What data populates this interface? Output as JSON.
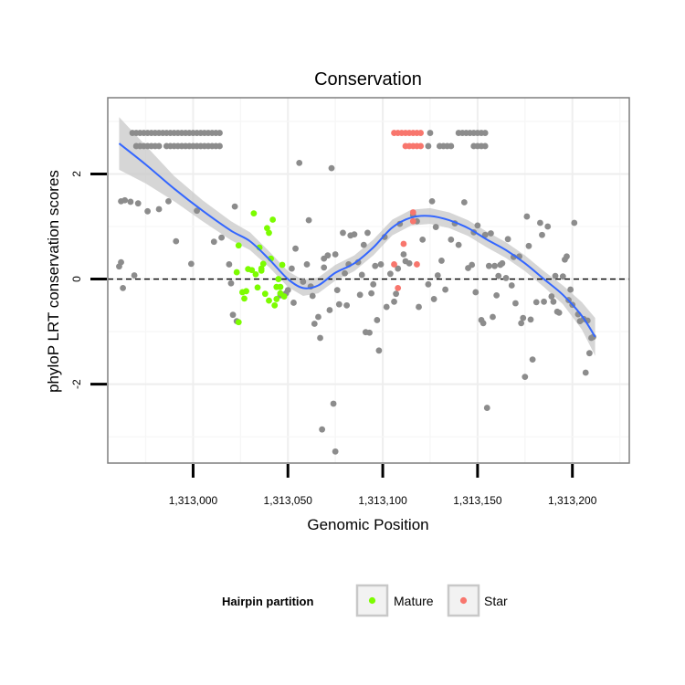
{
  "chart_data": {
    "type": "scatter",
    "title": "Conservation",
    "xlabel": "Genomic Position",
    "ylabel": "phyloP LRT conservation scores",
    "xlim": [
      1312955,
      1313230
    ],
    "ylim": [
      -3.5,
      3.45
    ],
    "x_ticks": [
      {
        "value": 1313000,
        "label": "1,313,000"
      },
      {
        "value": 1313050,
        "label": "1,313,050"
      },
      {
        "value": 1313100,
        "label": "1,313,100"
      },
      {
        "value": 1313150,
        "label": "1,313,150"
      },
      {
        "value": 1313200,
        "label": "1,313,200"
      }
    ],
    "y_ticks": [
      {
        "value": -2,
        "label": "-2"
      },
      {
        "value": 0,
        "label": "0"
      },
      {
        "value": 2,
        "label": "2"
      }
    ],
    "reference_line": {
      "y": 0,
      "style": "dashed"
    },
    "grid": true,
    "legend": {
      "title": "Hairpin partition",
      "position": "bottom",
      "entries": [
        {
          "label": "Mature",
          "color": "#7cfc00"
        },
        {
          "label": "Star",
          "color": "#f8766d"
        }
      ]
    },
    "colors": {
      "other": "#8c8c8c",
      "Mature": "#7cfc00",
      "Star": "#f8766d",
      "smooth": "#3366ff",
      "ribbon": "#c8c8c8"
    },
    "series": [
      {
        "name": "Other",
        "points": [
          [
            1312968,
            2.78
          ],
          [
            1312970,
            2.78
          ],
          [
            1312972,
            2.78
          ],
          [
            1312974,
            2.78
          ],
          [
            1312976,
            2.78
          ],
          [
            1312978,
            2.78
          ],
          [
            1312980,
            2.78
          ],
          [
            1312982,
            2.78
          ],
          [
            1312984,
            2.78
          ],
          [
            1312986,
            2.78
          ],
          [
            1312988,
            2.78
          ],
          [
            1312990,
            2.78
          ],
          [
            1312992,
            2.78
          ],
          [
            1312994,
            2.78
          ],
          [
            1312996,
            2.78
          ],
          [
            1312998,
            2.78
          ],
          [
            1313000,
            2.78
          ],
          [
            1313002,
            2.78
          ],
          [
            1313004,
            2.78
          ],
          [
            1313006,
            2.78
          ],
          [
            1313008,
            2.78
          ],
          [
            1313010,
            2.78
          ],
          [
            1313012,
            2.78
          ],
          [
            1313014,
            2.78
          ],
          [
            1312970,
            2.53
          ],
          [
            1312972,
            2.53
          ],
          [
            1312974,
            2.53
          ],
          [
            1312976,
            2.53
          ],
          [
            1312978,
            2.53
          ],
          [
            1312980,
            2.53
          ],
          [
            1312982,
            2.53
          ],
          [
            1312986,
            2.53
          ],
          [
            1312988,
            2.53
          ],
          [
            1312990,
            2.53
          ],
          [
            1312992,
            2.53
          ],
          [
            1312994,
            2.53
          ],
          [
            1312996,
            2.53
          ],
          [
            1312998,
            2.53
          ],
          [
            1313000,
            2.53
          ],
          [
            1313002,
            2.53
          ],
          [
            1313004,
            2.53
          ],
          [
            1313006,
            2.53
          ],
          [
            1313008,
            2.53
          ],
          [
            1313010,
            2.53
          ],
          [
            1313012,
            2.53
          ],
          [
            1313014,
            2.53
          ],
          [
            1313125,
            2.78
          ],
          [
            1313140,
            2.78
          ],
          [
            1313142,
            2.78
          ],
          [
            1313144,
            2.78
          ],
          [
            1313146,
            2.78
          ],
          [
            1313148,
            2.78
          ],
          [
            1313150,
            2.78
          ],
          [
            1313152,
            2.78
          ],
          [
            1313154,
            2.78
          ],
          [
            1313124,
            2.53
          ],
          [
            1313130,
            2.53
          ],
          [
            1313132,
            2.53
          ],
          [
            1313134,
            2.53
          ],
          [
            1313136,
            2.53
          ],
          [
            1313148,
            2.53
          ],
          [
            1313150,
            2.53
          ],
          [
            1313152,
            2.53
          ],
          [
            1313154,
            2.53
          ],
          [
            1312962,
            1.48
          ],
          [
            1312964,
            1.5
          ],
          [
            1312967,
            1.47
          ],
          [
            1312971,
            1.44
          ],
          [
            1312976,
            1.29
          ],
          [
            1312982,
            1.33
          ],
          [
            1312987,
            1.48
          ],
          [
            1312991,
            0.72
          ],
          [
            1312999,
            0.29
          ],
          [
            1313002,
            1.3
          ],
          [
            1313015,
            0.79
          ],
          [
            1313019,
            0.28
          ],
          [
            1313022,
            1.38
          ],
          [
            1313011,
            0.71
          ],
          [
            1312961,
            0.24
          ],
          [
            1312962,
            0.32
          ],
          [
            1312963,
            -0.17
          ],
          [
            1312969,
            0.07
          ],
          [
            1313020,
            -0.08
          ],
          [
            1313023,
            -0.8
          ],
          [
            1313021,
            -0.68
          ],
          [
            1313046,
            -0.31
          ],
          [
            1313049,
            -0.27
          ],
          [
            1313050,
            -0.21
          ],
          [
            1313052,
            0.2
          ],
          [
            1313053,
            -0.45
          ],
          [
            1313054,
            0.58
          ],
          [
            1313056,
            2.21
          ],
          [
            1313058,
            -0.05
          ],
          [
            1313060,
            0.28
          ],
          [
            1313061,
            1.12
          ],
          [
            1313062,
            -0.14
          ],
          [
            1313063,
            -0.32
          ],
          [
            1313064,
            -0.85
          ],
          [
            1313066,
            -0.72
          ],
          [
            1313067,
            -1.12
          ],
          [
            1313069,
            0.22
          ],
          [
            1313071,
            0.45
          ],
          [
            1313072,
            -0.59
          ],
          [
            1313074,
            -2.37
          ],
          [
            1313075,
            0.47
          ],
          [
            1313076,
            -0.21
          ],
          [
            1313077,
            -0.48
          ],
          [
            1313079,
            0.88
          ],
          [
            1313080,
            0.11
          ],
          [
            1313081,
            -0.5
          ],
          [
            1313082,
            0.28
          ],
          [
            1313083,
            0.83
          ],
          [
            1313085,
            0.85
          ],
          [
            1313087,
            0.32
          ],
          [
            1313088,
            -0.3
          ],
          [
            1313089,
            0.08
          ],
          [
            1313090,
            0.65
          ],
          [
            1313091,
            -1.01
          ],
          [
            1313092,
            0.88
          ],
          [
            1313093,
            -1.02
          ],
          [
            1313094,
            -0.27
          ],
          [
            1313095,
            -0.1
          ],
          [
            1313096,
            0.25
          ],
          [
            1313097,
            -0.78
          ],
          [
            1313098,
            -1.36
          ],
          [
            1313099,
            0.28
          ],
          [
            1313101,
            0.8
          ],
          [
            1313102,
            -0.53
          ],
          [
            1313104,
            0.1
          ],
          [
            1313106,
            -0.43
          ],
          [
            1313107,
            -0.28
          ],
          [
            1313108,
            0.2
          ],
          [
            1313109,
            1.05
          ],
          [
            1313111,
            0.47
          ],
          [
            1313112,
            0.34
          ],
          [
            1313114,
            0.3
          ],
          [
            1313116,
            1.22
          ],
          [
            1313118,
            1.1
          ],
          [
            1313119,
            -0.53
          ],
          [
            1313121,
            0.75
          ],
          [
            1313124,
            -0.1
          ],
          [
            1313126,
            1.48
          ],
          [
            1313127,
            -0.38
          ],
          [
            1313128,
            0.99
          ],
          [
            1313129,
            0.07
          ],
          [
            1313131,
            0.35
          ],
          [
            1313133,
            -0.2
          ],
          [
            1313136,
            0.75
          ],
          [
            1313138,
            1.06
          ],
          [
            1313140,
            0.65
          ],
          [
            1313143,
            1.46
          ],
          [
            1313145,
            0.21
          ],
          [
            1313147,
            0.27
          ],
          [
            1313148,
            0.89
          ],
          [
            1313149,
            -0.25
          ],
          [
            1313150,
            1.02
          ],
          [
            1313152,
            -0.78
          ],
          [
            1313153,
            -0.84
          ],
          [
            1313155,
            -2.45
          ],
          [
            1313154,
            0.84
          ],
          [
            1313156,
            0.25
          ],
          [
            1313157,
            0.87
          ],
          [
            1313158,
            -0.72
          ],
          [
            1313159,
            0.25
          ],
          [
            1313160,
            -0.31
          ],
          [
            1313161,
            0.06
          ],
          [
            1313162,
            0.27
          ],
          [
            1313163,
            0.3
          ],
          [
            1313165,
            0.02
          ],
          [
            1313166,
            0.76
          ],
          [
            1313168,
            -0.12
          ],
          [
            1313169,
            0.42
          ],
          [
            1313170,
            -0.46
          ],
          [
            1313172,
            0.43
          ],
          [
            1313173,
            -0.84
          ],
          [
            1313174,
            -0.74
          ],
          [
            1313175,
            -1.86
          ],
          [
            1313176,
            1.19
          ],
          [
            1313177,
            0.63
          ],
          [
            1313178,
            -0.77
          ],
          [
            1313179,
            -1.53
          ],
          [
            1313181,
            -0.44
          ],
          [
            1313183,
            1.07
          ],
          [
            1313184,
            0.84
          ],
          [
            1313185,
            -0.43
          ],
          [
            1313187,
            1.0
          ],
          [
            1313189,
            -0.33
          ],
          [
            1313190,
            -0.43
          ],
          [
            1313191,
            0.06
          ],
          [
            1313192,
            -0.62
          ],
          [
            1313193,
            -0.64
          ],
          [
            1313195,
            0.05
          ],
          [
            1313196,
            0.37
          ],
          [
            1313197,
            0.43
          ],
          [
            1313198,
            -0.4
          ],
          [
            1313199,
            -0.2
          ],
          [
            1313200,
            -0.49
          ],
          [
            1313201,
            1.07
          ],
          [
            1313203,
            -0.67
          ],
          [
            1313204,
            -0.8
          ],
          [
            1313206,
            -0.76
          ],
          [
            1313207,
            -1.78
          ],
          [
            1313208,
            -0.79
          ],
          [
            1313209,
            -1.41
          ],
          [
            1313210,
            -1.12
          ],
          [
            1313211,
            -1.1
          ],
          [
            1313068,
            -2.86
          ],
          [
            1313075,
            -3.28
          ],
          [
            1313073,
            2.11
          ],
          [
            1313069,
            0.39
          ]
        ]
      },
      {
        "name": "Mature",
        "points": [
          [
            1313023,
            0.13
          ],
          [
            1313024,
            0.64
          ],
          [
            1313026,
            -0.25
          ],
          [
            1313027,
            -0.37
          ],
          [
            1313028,
            -0.23
          ],
          [
            1313029,
            0.19
          ],
          [
            1313031,
            0.17
          ],
          [
            1313032,
            1.25
          ],
          [
            1313033,
            0.09
          ],
          [
            1313034,
            -0.16
          ],
          [
            1313035,
            0.6
          ],
          [
            1313036,
            0.16
          ],
          [
            1313037,
            0.29
          ],
          [
            1313038,
            -0.28
          ],
          [
            1313039,
            0.97
          ],
          [
            1313040,
            -0.41
          ],
          [
            1313041,
            0.39
          ],
          [
            1313042,
            1.13
          ],
          [
            1313043,
            -0.5
          ],
          [
            1313044,
            -0.15
          ],
          [
            1313045,
            0.0
          ],
          [
            1313046,
            -0.15
          ],
          [
            1313047,
            0.27
          ],
          [
            1313048,
            -0.33
          ],
          [
            1313024,
            -0.82
          ],
          [
            1313036,
            0.2
          ],
          [
            1313040,
            0.88
          ],
          [
            1313046,
            -0.27
          ],
          [
            1313044,
            -0.38
          ]
        ]
      },
      {
        "name": "Star",
        "points": [
          [
            1313106,
            2.78
          ],
          [
            1313108,
            2.78
          ],
          [
            1313110,
            2.78
          ],
          [
            1313112,
            2.78
          ],
          [
            1313114,
            2.78
          ],
          [
            1313116,
            2.78
          ],
          [
            1313118,
            2.78
          ],
          [
            1313120,
            2.78
          ],
          [
            1313112,
            2.53
          ],
          [
            1313114,
            2.53
          ],
          [
            1313116,
            2.53
          ],
          [
            1313118,
            2.53
          ],
          [
            1313120,
            2.53
          ],
          [
            1313106,
            0.28
          ],
          [
            1313108,
            -0.17
          ],
          [
            1313111,
            0.67
          ],
          [
            1313116,
            1.27
          ],
          [
            1313116,
            1.1
          ],
          [
            1313118,
            0.28
          ]
        ]
      }
    ],
    "smooth": {
      "x": [
        1312961,
        1312975,
        1312990,
        1313005,
        1313020,
        1313030,
        1313040,
        1313050,
        1313058,
        1313066,
        1313075,
        1313085,
        1313095,
        1313105,
        1313115,
        1313125,
        1313135,
        1313145,
        1313155,
        1313165,
        1313175,
        1313185,
        1313195,
        1313205,
        1313212
      ],
      "y": [
        2.58,
        2.18,
        1.72,
        1.3,
        0.92,
        0.72,
        0.38,
        0.0,
        -0.17,
        -0.12,
        0.12,
        0.3,
        0.6,
        0.98,
        1.17,
        1.2,
        1.12,
        0.97,
        0.75,
        0.55,
        0.3,
        0.0,
        -0.3,
        -0.7,
        -1.1
      ],
      "se": [
        0.5,
        0.36,
        0.24,
        0.2,
        0.18,
        0.17,
        0.15,
        0.15,
        0.15,
        0.15,
        0.15,
        0.15,
        0.15,
        0.15,
        0.15,
        0.15,
        0.15,
        0.15,
        0.15,
        0.15,
        0.15,
        0.15,
        0.18,
        0.26,
        0.36
      ]
    }
  }
}
